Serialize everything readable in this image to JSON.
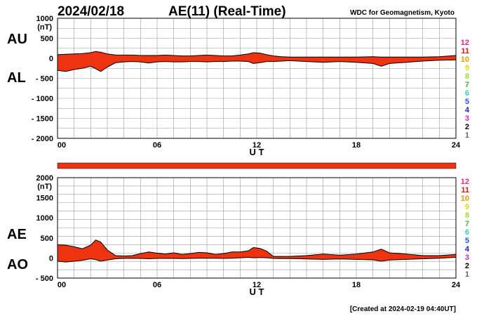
{
  "header": {
    "date": "2024/02/18",
    "title": "AE(11) (Real-Time)",
    "source": "WDC for Geomagnetism, Kyoto"
  },
  "footer": {
    "created": "[Created at 2024-02-19 04:40UT]"
  },
  "colors": {
    "fill": "#ee3311",
    "outline": "#000000",
    "grid": "#999999",
    "bar": "#ee3311",
    "legend": [
      "#ee2288",
      "#ee1111",
      "#ee9900",
      "#dddd00",
      "#99dd33",
      "#33bb33",
      "#33cccc",
      "#2255ee",
      "#2222aa",
      "#cc22cc",
      "#000000",
      "#666666",
      "#bbbbbb"
    ]
  },
  "legend_labels": [
    "12",
    "11",
    "10",
    "9",
    "8",
    "7",
    "6",
    "5",
    "4",
    "3",
    "2",
    "1"
  ],
  "chart_data": [
    {
      "type": "area",
      "panel": "top",
      "series_labels": [
        "AU",
        "AL"
      ],
      "y_unit": "(nT)",
      "ylim": [
        -2000,
        1000
      ],
      "yticks": [
        1000,
        500,
        0,
        -500,
        -1000,
        -1500,
        -2000
      ],
      "ytick_labels": [
        "1000",
        "500",
        "0",
        "- 500",
        "- 1000",
        "- 1500",
        "- 2000"
      ],
      "xlim": [
        0,
        24
      ],
      "xticks": [
        0,
        6,
        12,
        18,
        24
      ],
      "xtick_labels": [
        "00",
        "06",
        "12",
        "18",
        "24"
      ],
      "xlabel": "U T",
      "x": [
        0,
        0.5,
        1,
        1.5,
        2,
        2.3,
        2.6,
        3,
        3.5,
        4,
        4.5,
        5,
        5.5,
        6,
        6.5,
        7,
        7.5,
        8,
        8.5,
        9,
        9.5,
        10,
        10.5,
        11,
        11.5,
        11.8,
        12.2,
        12.6,
        13,
        13.5,
        14,
        15,
        16,
        17,
        18,
        19,
        19.5,
        20,
        21,
        22,
        23,
        24
      ],
      "AU": [
        90,
        100,
        110,
        120,
        140,
        170,
        150,
        110,
        80,
        80,
        80,
        70,
        70,
        70,
        80,
        70,
        60,
        60,
        70,
        80,
        70,
        60,
        60,
        80,
        110,
        140,
        130,
        90,
        60,
        40,
        30,
        30,
        30,
        30,
        30,
        40,
        30,
        30,
        30,
        30,
        40,
        70
      ],
      "AL": [
        -300,
        -330,
        -280,
        -250,
        -200,
        -260,
        -330,
        -220,
        -110,
        -90,
        -80,
        -90,
        -120,
        -90,
        -80,
        -90,
        -90,
        -80,
        -80,
        -90,
        -80,
        -80,
        -70,
        -70,
        -80,
        -130,
        -110,
        -80,
        -80,
        -70,
        -60,
        -80,
        -100,
        -80,
        -100,
        -130,
        -200,
        -130,
        -100,
        -70,
        -50,
        -40
      ]
    },
    {
      "type": "area",
      "panel": "bottom",
      "series_labels": [
        "AE",
        "AO"
      ],
      "y_unit": "(nT)",
      "ylim": [
        -500,
        2000
      ],
      "yticks": [
        2000,
        1500,
        1000,
        500,
        0,
        -500
      ],
      "ytick_labels": [
        "2000",
        "1500",
        "1000",
        "500",
        "0",
        "- 500"
      ],
      "xlim": [
        0,
        24
      ],
      "xticks": [
        0,
        6,
        12,
        18,
        24
      ],
      "xtick_labels": [
        "00",
        "06",
        "12",
        "18",
        "24"
      ],
      "xlabel": "U T",
      "x": [
        0,
        0.5,
        1,
        1.5,
        2,
        2.3,
        2.6,
        3,
        3.5,
        4,
        4.5,
        5,
        5.5,
        6,
        6.5,
        7,
        7.5,
        8,
        8.5,
        9,
        9.5,
        10,
        10.5,
        11,
        11.5,
        11.8,
        12.2,
        12.6,
        13,
        13.5,
        14,
        15,
        16,
        17,
        18,
        19,
        19.5,
        20,
        21,
        22,
        23,
        24
      ],
      "AE": [
        330,
        320,
        280,
        230,
        320,
        450,
        400,
        200,
        60,
        50,
        60,
        110,
        150,
        120,
        100,
        130,
        90,
        110,
        140,
        130,
        90,
        110,
        150,
        150,
        180,
        260,
        240,
        170,
        40,
        40,
        40,
        60,
        100,
        70,
        100,
        150,
        220,
        130,
        100,
        60,
        60,
        90
      ],
      "AO": [
        -80,
        -100,
        -80,
        -60,
        -20,
        -40,
        -80,
        -50,
        -20,
        -10,
        -10,
        -10,
        -20,
        -10,
        -10,
        -10,
        -15,
        -10,
        -5,
        -5,
        -5,
        -10,
        -5,
        5,
        15,
        5,
        10,
        5,
        -10,
        -15,
        -15,
        -25,
        -35,
        -25,
        -35,
        -45,
        -80,
        -50,
        -35,
        -20,
        -5,
        15
      ]
    }
  ]
}
